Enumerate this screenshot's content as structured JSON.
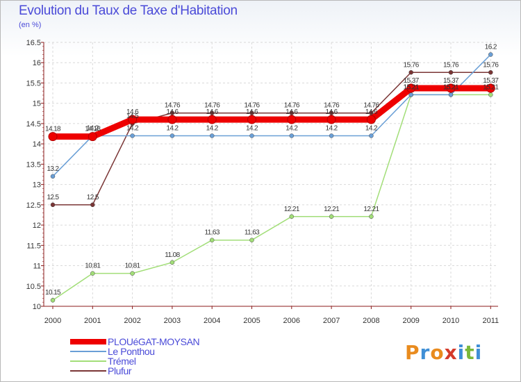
{
  "header": {
    "title": "Evolution du Taux de Taxe d'Habitation",
    "unit": "(en %)"
  },
  "logo": {
    "letters": [
      "P",
      "r",
      "o",
      "x",
      "i",
      "t",
      "i"
    ],
    "colors": [
      "#e98b1e",
      "#3f8fd6",
      "#e98b1e",
      "#d43a2a",
      "#3f8fd6",
      "#7ab83a",
      "#3f8fd6"
    ]
  },
  "chart_data": {
    "type": "line",
    "title": "Evolution du Taux de Taxe d'Habitation",
    "ylabel": "(en %)",
    "xlabel": "",
    "x": [
      "2000",
      "2001",
      "2002",
      "2003",
      "2004",
      "2005",
      "2006",
      "2007",
      "2008",
      "2009",
      "2010",
      "2011"
    ],
    "ylim": [
      10,
      16.5
    ],
    "yticks": [
      "10",
      "10.5",
      "11",
      "11.5",
      "12",
      "12.5",
      "13",
      "13.5",
      "14",
      "14.5",
      "15",
      "15.5",
      "16",
      "16.5"
    ],
    "grid": true,
    "legend_position": "bottom-left",
    "series": [
      {
        "name": "PLOUéGAT-MOYSAN",
        "color": "#ee0000",
        "values": [
          14.18,
          14.18,
          14.6,
          14.6,
          14.6,
          14.6,
          14.6,
          14.6,
          14.6,
          15.37,
          15.37,
          15.37
        ],
        "labels": [
          "14.18",
          "14.18",
          "14.6",
          "14.6",
          "14.6",
          "14.6",
          "14.6",
          "14.6",
          "14.6",
          "15.37",
          "15.37",
          "15.37"
        ]
      },
      {
        "name": "Le Ponthou",
        "color": "#6a9fd6",
        "values": [
          13.2,
          14.2,
          14.2,
          14.2,
          14.2,
          14.2,
          14.2,
          14.2,
          14.2,
          15.21,
          15.21,
          16.2
        ],
        "labels": [
          "13.2",
          "14.2",
          "14.2",
          "14.2",
          "14.2",
          "14.2",
          "14.2",
          "14.2",
          "14.2",
          "15.21",
          "15.21",
          "16.2"
        ]
      },
      {
        "name": "Trémel",
        "color": "#a2de78",
        "values": [
          10.15,
          10.81,
          10.81,
          11.08,
          11.63,
          11.63,
          12.21,
          12.21,
          12.21,
          15.21,
          15.21,
          15.21
        ],
        "labels": [
          "10.15",
          "10.81",
          "10.81",
          "11.08",
          "11.63",
          "11.63",
          "12.21",
          "12.21",
          "12.21",
          "15.21",
          "15.21",
          "15.21"
        ]
      },
      {
        "name": "Plufur",
        "color": "#7a3535",
        "values": [
          12.5,
          12.5,
          14.5,
          14.76,
          14.76,
          14.76,
          14.76,
          14.76,
          14.76,
          15.76,
          15.76,
          15.76
        ],
        "labels": [
          "12.5",
          "12.5",
          "14.5",
          "14.76",
          "14.76",
          "14.76",
          "14.76",
          "14.76",
          "14.76",
          "15.76",
          "15.76",
          "15.76"
        ]
      }
    ]
  }
}
